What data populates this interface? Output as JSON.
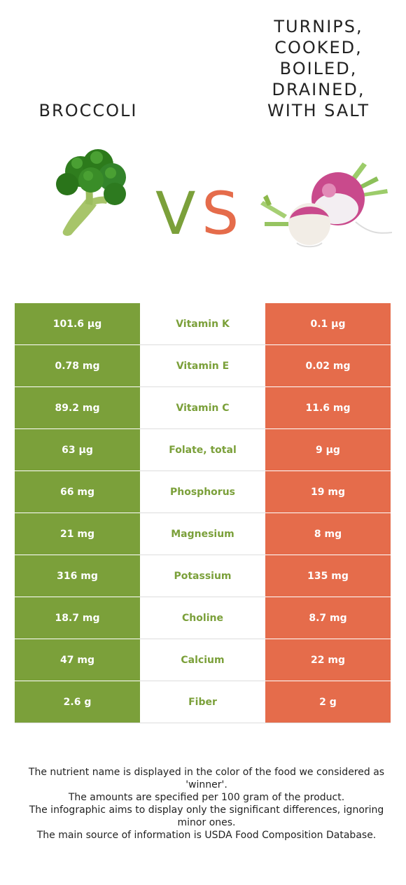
{
  "left_food": {
    "name": "BROCCOLI"
  },
  "right_food": {
    "name_lines": [
      "TURNIPS,",
      "COOKED,",
      "BOILED,",
      "DRAINED,",
      "WITH SALT"
    ]
  },
  "vs": {
    "text": "VS",
    "v_color": "#7ba03a",
    "s_color": "#e56c4b"
  },
  "colors": {
    "left_accent": "#7ba03a",
    "right_accent": "#e56c4b"
  },
  "rows": [
    {
      "left": "101.6 µg",
      "nutrient": "Vitamin K",
      "right": "0.1 µg"
    },
    {
      "left": "0.78 mg",
      "nutrient": "Vitamin E",
      "right": "0.02 mg"
    },
    {
      "left": "89.2 mg",
      "nutrient": "Vitamin C",
      "right": "11.6 mg"
    },
    {
      "left": "63 µg",
      "nutrient": "Folate, total",
      "right": "9 µg"
    },
    {
      "left": "66 mg",
      "nutrient": "Phosphorus",
      "right": "19 mg"
    },
    {
      "left": "21 mg",
      "nutrient": "Magnesium",
      "right": "8 mg"
    },
    {
      "left": "316 mg",
      "nutrient": "Potassium",
      "right": "135 mg"
    },
    {
      "left": "18.7 mg",
      "nutrient": "Choline",
      "right": "8.7 mg"
    },
    {
      "left": "47 mg",
      "nutrient": "Calcium",
      "right": "22 mg"
    },
    {
      "left": "2.6 g",
      "nutrient": "Fiber",
      "right": "2 g"
    }
  ],
  "footnotes": [
    "The nutrient name is displayed in the color of the food we considered as 'winner'.",
    "The amounts are specified per 100 gram of the product.",
    "The infographic aims to display only the significant differences, ignoring minor ones.",
    "The main source of information is USDA Food Composition Database."
  ]
}
